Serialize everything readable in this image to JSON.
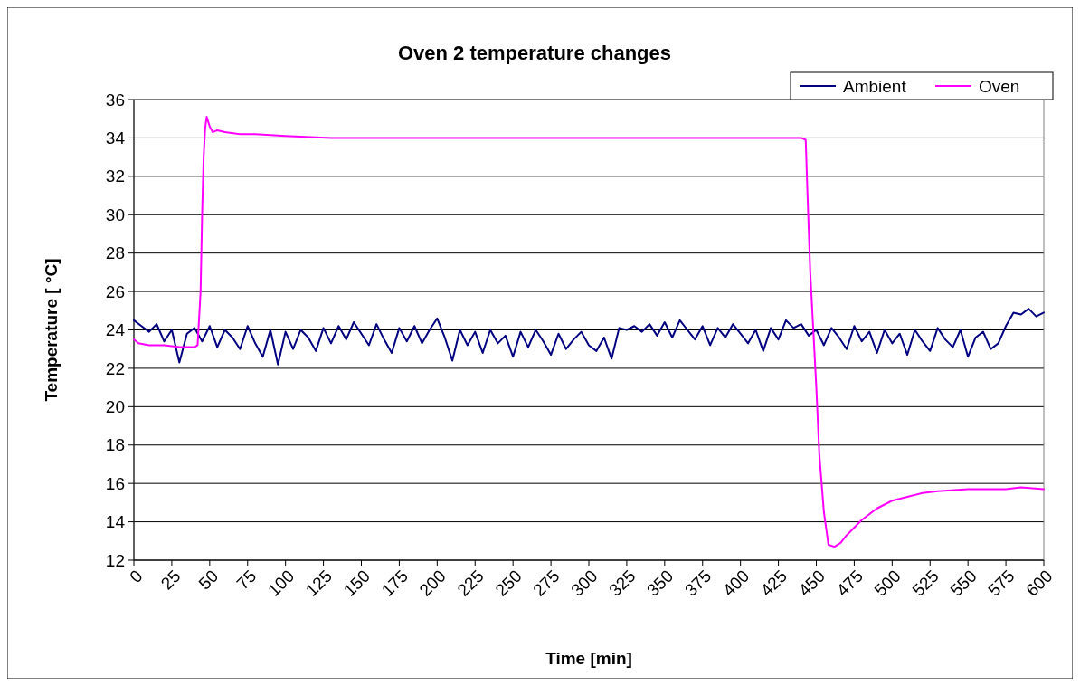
{
  "chart_data": {
    "type": "line",
    "title": "Oven 2 temperature changes",
    "xlabel": "Time [min]",
    "ylabel": "Temperature [ °C]",
    "xlim": [
      0,
      600
    ],
    "xticks": [
      0,
      25,
      50,
      75,
      100,
      125,
      150,
      175,
      200,
      225,
      250,
      275,
      300,
      325,
      350,
      375,
      400,
      425,
      450,
      475,
      500,
      525,
      550,
      575,
      600
    ],
    "ylim": [
      12,
      36
    ],
    "yticks": [
      12,
      14,
      16,
      18,
      20,
      22,
      24,
      26,
      28,
      30,
      32,
      34,
      36
    ],
    "grid": "y",
    "legend": "top right",
    "marker": "none",
    "line_style": "solid",
    "series": [
      {
        "name": "Ambient",
        "color": "#000080",
        "x": [
          0,
          5,
          10,
          15,
          20,
          25,
          30,
          35,
          40,
          45,
          50,
          55,
          60,
          65,
          70,
          75,
          80,
          85,
          90,
          95,
          100,
          105,
          110,
          115,
          120,
          125,
          130,
          135,
          140,
          145,
          150,
          155,
          160,
          165,
          170,
          175,
          180,
          185,
          190,
          195,
          200,
          205,
          210,
          215,
          220,
          225,
          230,
          235,
          240,
          245,
          250,
          255,
          260,
          265,
          270,
          275,
          280,
          285,
          290,
          295,
          300,
          305,
          310,
          315,
          320,
          325,
          330,
          335,
          340,
          345,
          350,
          355,
          360,
          365,
          370,
          375,
          380,
          385,
          390,
          395,
          400,
          405,
          410,
          415,
          420,
          425,
          430,
          435,
          440,
          445,
          450,
          455,
          460,
          465,
          470,
          475,
          480,
          485,
          490,
          495,
          500,
          505,
          510,
          515,
          520,
          525,
          530,
          535,
          540,
          545,
          550,
          555,
          560,
          565,
          570,
          575,
          580,
          585,
          590,
          595,
          600
        ],
        "values": [
          24.5,
          24.2,
          23.9,
          24.3,
          23.4,
          24.0,
          22.3,
          23.8,
          24.1,
          23.4,
          24.2,
          23.1,
          24.0,
          23.6,
          23.0,
          24.2,
          23.3,
          22.6,
          24.0,
          22.2,
          23.9,
          23.0,
          24.0,
          23.6,
          22.9,
          24.1,
          23.3,
          24.2,
          23.5,
          24.4,
          23.8,
          23.2,
          24.3,
          23.5,
          22.8,
          24.1,
          23.4,
          24.2,
          23.3,
          24.0,
          24.6,
          23.6,
          22.4,
          24.0,
          23.2,
          23.9,
          22.8,
          24.0,
          23.3,
          23.7,
          22.6,
          23.9,
          23.1,
          24.0,
          23.4,
          22.7,
          23.8,
          23.0,
          23.5,
          23.9,
          23.2,
          22.9,
          23.6,
          22.5,
          24.1,
          24.0,
          24.2,
          23.9,
          24.3,
          23.7,
          24.4,
          23.6,
          24.5,
          24.0,
          23.5,
          24.2,
          23.2,
          24.1,
          23.6,
          24.3,
          23.8,
          23.3,
          24.0,
          22.9,
          24.1,
          23.5,
          24.5,
          24.1,
          24.3,
          23.7,
          24.0,
          23.2,
          24.1,
          23.6,
          23.0,
          24.2,
          23.4,
          23.9,
          22.8,
          24.0,
          23.3,
          23.8,
          22.7,
          24.0,
          23.4,
          22.9,
          24.1,
          23.5,
          23.1,
          24.0,
          22.6,
          23.6,
          23.9,
          23.0,
          23.3,
          24.2,
          24.9,
          24.8,
          25.1,
          24.7,
          24.9
        ]
      },
      {
        "name": "Oven",
        "color": "#ff00ff",
        "x": [
          0,
          3,
          10,
          20,
          30,
          40,
          42,
          44,
          45,
          46,
          47,
          48,
          50,
          52,
          55,
          60,
          70,
          80,
          100,
          130,
          200,
          300,
          400,
          440,
          443,
          444,
          446,
          448,
          450,
          452,
          455,
          458,
          462,
          466,
          470,
          475,
          480,
          490,
          500,
          510,
          520,
          530,
          550,
          575,
          585,
          600
        ],
        "values": [
          23.5,
          23.3,
          23.2,
          23.2,
          23.1,
          23.1,
          23.2,
          26,
          30,
          33,
          34.5,
          35.1,
          34.6,
          34.3,
          34.4,
          34.3,
          34.2,
          34.2,
          34.1,
          34.0,
          34.0,
          34.0,
          34.0,
          34.0,
          33.9,
          31.5,
          27,
          24,
          21,
          17.5,
          14.5,
          12.8,
          12.7,
          12.9,
          13.3,
          13.7,
          14.1,
          14.7,
          15.1,
          15.3,
          15.5,
          15.6,
          15.7,
          15.7,
          15.8,
          15.7
        ]
      }
    ]
  }
}
